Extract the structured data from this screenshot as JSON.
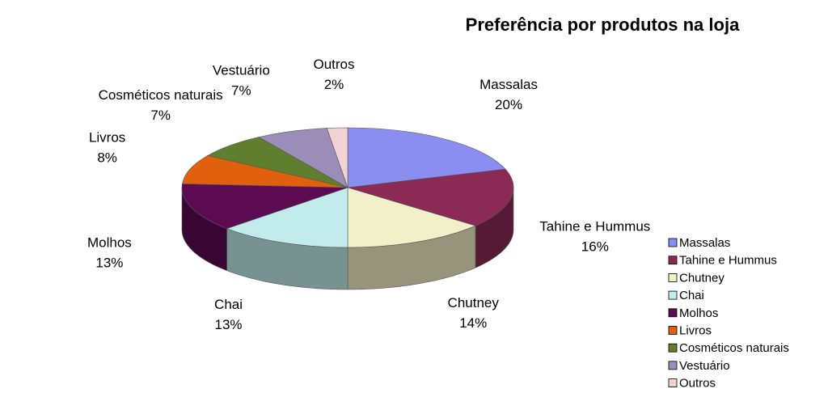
{
  "chart_data": {
    "type": "pie",
    "title": "Preferência por produtos na loja",
    "categories": [
      "Massalas",
      "Tahine e Hummus",
      "Chutney",
      "Chai",
      "Molhos",
      "Livros",
      "Cosméticos naturais",
      "Vestuário",
      "Outros"
    ],
    "values": [
      20,
      16,
      14,
      13,
      13,
      8,
      7,
      7,
      2
    ],
    "value_labels": [
      "20%",
      "16%",
      "14%",
      "13%",
      "13%",
      "8%",
      "7%",
      "7%",
      "2%"
    ],
    "colors": [
      "#8a8ef0",
      "#8b2a55",
      "#f2f0c8",
      "#c2ecec",
      "#5c0a52",
      "#e0600e",
      "#5f7f2e",
      "#9a8eb8",
      "#f2d2d2"
    ],
    "legend": "right"
  }
}
